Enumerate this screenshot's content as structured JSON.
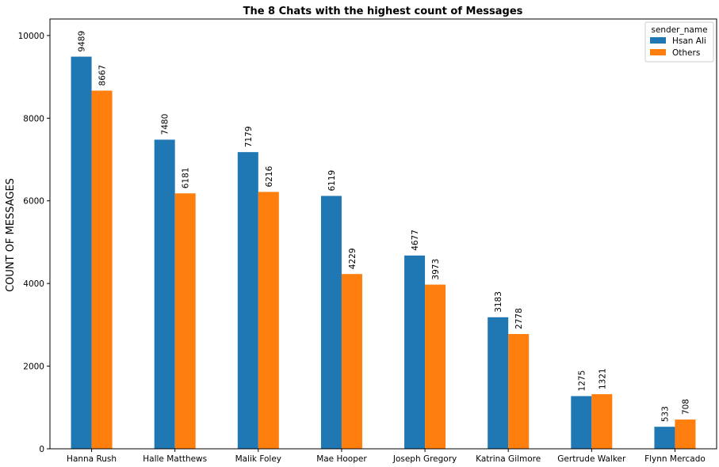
{
  "chart_data": {
    "type": "bar",
    "title": "The 8 Chats with the highest count of Messages",
    "xlabel": "",
    "ylabel": "COUNT OF MESSAGES",
    "categories": [
      "Hanna Rush",
      "Halle Matthews",
      "Malik Foley",
      "Mae Hooper",
      "Joseph Gregory",
      "Katrina Gilmore",
      "Gertrude Walker",
      "Flynn Mercado"
    ],
    "series": [
      {
        "name": "Hsan Ali",
        "color": "#1f77b4",
        "values": [
          9489,
          7480,
          7179,
          6119,
          4677,
          3183,
          1275,
          533
        ]
      },
      {
        "name": "Others",
        "color": "#ff7f0e",
        "values": [
          8667,
          6181,
          6216,
          4229,
          3973,
          2778,
          1321,
          708
        ]
      }
    ],
    "ylim": [
      0,
      10400
    ],
    "yticks": [
      0,
      2000,
      4000,
      6000,
      8000,
      10000
    ],
    "grid": false,
    "legend": {
      "title": "sender_name",
      "placement": "top-right"
    },
    "data_labels": true
  }
}
